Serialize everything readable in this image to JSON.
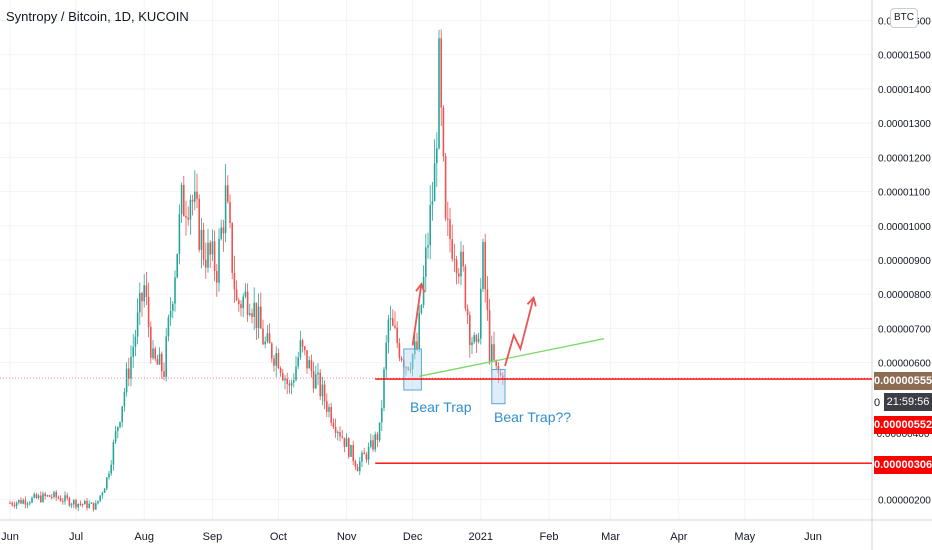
{
  "header": {
    "title": "Syntropy / Bitcoin, 1D, KUCOIN",
    "currency_badge": "BTC"
  },
  "price_labels": {
    "current": {
      "text": "0.00000555",
      "color": "#8d6b52"
    },
    "countdown": "21:59:56",
    "support_1": {
      "text": "0.00000552",
      "color": "#ff0000"
    },
    "support_2": {
      "text": "0.00000306",
      "color": "#ff0000"
    },
    "partial_tick_1": "0",
    "partial_tick_2": "0.00000400"
  },
  "annotations": {
    "bear_trap_1": "Bear Trap",
    "bear_trap_2": "Bear Trap??"
  },
  "colors": {
    "up": "#26a69a",
    "down": "#ef5350",
    "trendline": "#7cd86a",
    "support": "#ff0000",
    "arrow": "#ef5350",
    "box_fill": "#b3d9f2",
    "box_stroke": "#5aa6d6",
    "grid": "#f0f3fa",
    "axis_text": "#131722"
  },
  "chart_data": {
    "type": "candlestick",
    "title": "Syntropy / Bitcoin, 1D, KUCOIN",
    "x_tick_labels": [
      "Jun",
      "Jul",
      "Aug",
      "Sep",
      "Oct",
      "Nov",
      "Dec",
      "2021",
      "Feb",
      "Mar",
      "Apr",
      "May",
      "Jun"
    ],
    "y_tick_labels": [
      "0.00000200",
      "0.00000600",
      "0.00000700",
      "0.00000800",
      "0.00000900",
      "0.00001000",
      "0.00001100",
      "0.00001200",
      "0.00001300",
      "0.00001400",
      "0.00001500",
      "0.00001600"
    ],
    "y_tick_values": [
      2e-06,
      6e-06,
      7e-06,
      8e-06,
      9e-06,
      1e-05,
      1.1e-05,
      1.2e-05,
      1.3e-05,
      1.4e-05,
      1.5e-05,
      1.6e-05
    ],
    "ylim": [
      1.4e-06,
      1.66e-05
    ],
    "grid": true,
    "start_date": "2020-06-01",
    "month_start_dates": [
      "2020-06-01",
      "2020-07-01",
      "2020-08-01",
      "2020-09-01",
      "2020-10-01",
      "2020-11-01",
      "2020-12-01",
      "2021-01-01",
      "2021-02-01",
      "2021-03-01",
      "2021-04-01",
      "2021-05-01",
      "2021-06-01"
    ],
    "close_path": [
      [
        "2020-06-01",
        1.9e-06
      ],
      [
        "2020-06-20",
        2.1e-06
      ],
      [
        "2020-07-01",
        1.9e-06
      ],
      [
        "2020-07-10",
        1.8e-06
      ],
      [
        "2020-07-15",
        2.6e-06
      ],
      [
        "2020-07-20",
        4.2e-06
      ],
      [
        "2020-07-27",
        6.5e-06
      ],
      [
        "2020-08-01",
        8.2e-06
      ],
      [
        "2020-08-05",
        6e-06
      ],
      [
        "2020-08-10",
        5.8e-06
      ],
      [
        "2020-08-18",
        1.06e-05
      ],
      [
        "2020-08-22",
        1.1e-05
      ],
      [
        "2020-08-28",
        9.3e-06
      ],
      [
        "2020-09-03",
        8.8e-06
      ],
      [
        "2020-09-07",
        1.08e-05
      ],
      [
        "2020-09-12",
        7.7e-06
      ],
      [
        "2020-09-18",
        8e-06
      ],
      [
        "2020-09-25",
        6.5e-06
      ],
      [
        "2020-10-01",
        6.2e-06
      ],
      [
        "2020-10-06",
        5.2e-06
      ],
      [
        "2020-10-11",
        6.4e-06
      ],
      [
        "2020-10-18",
        5.5e-06
      ],
      [
        "2020-10-25",
        4.5e-06
      ],
      [
        "2020-11-01",
        3.6e-06
      ],
      [
        "2020-11-06",
        3e-06
      ],
      [
        "2020-11-12",
        3.5e-06
      ],
      [
        "2020-11-16",
        4e-06
      ],
      [
        "2020-11-20",
        7.2e-06
      ],
      [
        "2020-11-24",
        6.6e-06
      ],
      [
        "2020-11-28",
        6e-06
      ],
      [
        "2020-12-03",
        6.4e-06
      ],
      [
        "2020-12-07",
        9e-06
      ],
      [
        "2020-12-11",
        1.15e-05
      ],
      [
        "2020-12-13",
        1.45e-05
      ],
      [
        "2020-12-16",
        9.8e-06
      ],
      [
        "2020-12-20",
        9.5e-06
      ],
      [
        "2020-12-24",
        8.5e-06
      ],
      [
        "2020-12-27",
        7e-06
      ],
      [
        "2020-12-30",
        6.2e-06
      ],
      [
        "2021-01-02",
        9e-06
      ],
      [
        "2021-01-05",
        6.4e-06
      ],
      [
        "2021-01-08",
        5.7e-06
      ],
      [
        "2021-01-11",
        5.5e-06
      ]
    ],
    "last_date": "2021-01-11",
    "last_price": 5.55e-06
  },
  "drawings": {
    "support_lines": [
      {
        "from": "2020-11-14",
        "price": 5.52e-06
      },
      {
        "from": "2020-11-14",
        "price": 3.06e-06
      }
    ],
    "trendline": {
      "from": [
        "2020-12-04",
        5.6e-06
      ],
      "to": [
        "2021-02-26",
        6.7e-06
      ]
    },
    "arrows": [
      {
        "points": [
          [
            "2020-12-01",
            6.5e-06
          ],
          [
            "2020-12-05",
            8.3e-06
          ]
        ]
      },
      {
        "points": [
          [
            "2021-01-12",
            5.9e-06
          ],
          [
            "2021-01-16",
            6.8e-06
          ],
          [
            "2021-01-19",
            6.4e-06
          ],
          [
            "2021-01-25",
            7.9e-06
          ]
        ]
      }
    ],
    "boxes": [
      {
        "from": "2020-11-27",
        "to": "2020-12-05",
        "top": 6.4e-06,
        "bottom": 5.2e-06
      },
      {
        "from": "2021-01-06",
        "to": "2021-01-12",
        "top": 5.8e-06,
        "bottom": 4.8e-06
      }
    ]
  }
}
